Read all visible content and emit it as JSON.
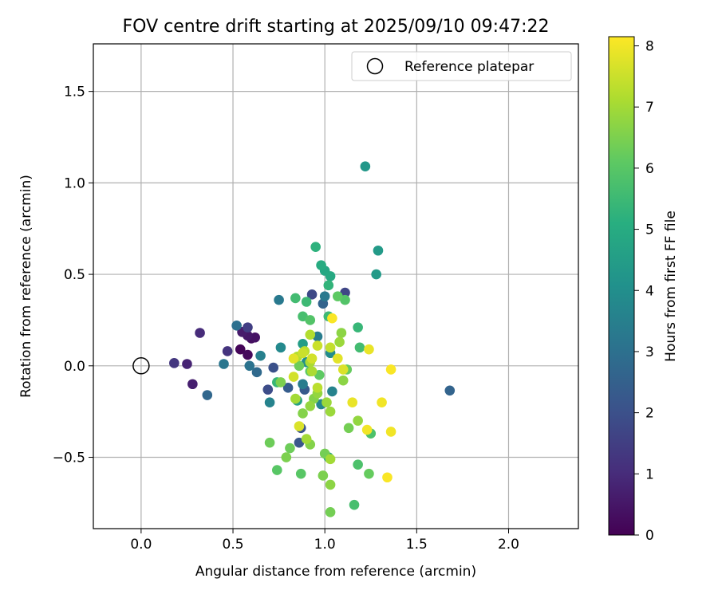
{
  "chart_data": {
    "type": "scatter",
    "title": "FOV centre drift starting at 2025/09/10 09:47:22",
    "xlabel": "Angular distance from reference (arcmin)",
    "ylabel": "Rotation from reference (arcmin)",
    "xlim": [
      -0.26,
      2.38
    ],
    "ylim": [
      -0.89,
      1.76
    ],
    "xticks": [
      0.0,
      0.5,
      1.0,
      1.5,
      2.0
    ],
    "xtick_labels": [
      "0.0",
      "0.5",
      "1.0",
      "1.5",
      "2.0"
    ],
    "yticks": [
      -0.5,
      0.0,
      0.5,
      1.0,
      1.5
    ],
    "ytick_labels": [
      "−0.5",
      "0.0",
      "0.5",
      "1.0",
      "1.5"
    ],
    "grid": true,
    "legend": {
      "position": "top-right",
      "label": "Reference platepar"
    },
    "reference_point": {
      "x": 0.0,
      "y": 0.0
    },
    "colorbar": {
      "label": "Hours from first FF file",
      "min": 0,
      "max": 8.15,
      "ticks": [
        0,
        1,
        2,
        3,
        4,
        5,
        6,
        7,
        8
      ],
      "tick_labels": [
        "0",
        "1",
        "2",
        "3",
        "4",
        "5",
        "6",
        "7",
        "8"
      ],
      "colormap": "viridis"
    },
    "points": [
      {
        "x": 0.54,
        "y": 0.09,
        "c": 0.1
      },
      {
        "x": 0.58,
        "y": 0.06,
        "c": 0.2
      },
      {
        "x": 0.6,
        "y": 0.15,
        "c": 0.3
      },
      {
        "x": 0.62,
        "y": 0.155,
        "c": 0.4
      },
      {
        "x": 0.58,
        "y": 0.165,
        "c": 0.5
      },
      {
        "x": 0.55,
        "y": 0.185,
        "c": 0.6
      },
      {
        "x": 0.28,
        "y": -0.1,
        "c": 0.7
      },
      {
        "x": 0.25,
        "y": 0.01,
        "c": 0.8
      },
      {
        "x": 0.32,
        "y": 0.18,
        "c": 1.0
      },
      {
        "x": 0.47,
        "y": 0.08,
        "c": 1.2
      },
      {
        "x": 0.18,
        "y": 0.015,
        "c": 1.3
      },
      {
        "x": 0.58,
        "y": 0.21,
        "c": 1.5
      },
      {
        "x": 1.11,
        "y": 0.4,
        "c": 1.7
      },
      {
        "x": 0.93,
        "y": 0.39,
        "c": 1.8
      },
      {
        "x": 0.69,
        "y": -0.13,
        "c": 1.9
      },
      {
        "x": 0.72,
        "y": -0.01,
        "c": 2.0
      },
      {
        "x": 0.87,
        "y": -0.34,
        "c": 2.1
      },
      {
        "x": 0.86,
        "y": -0.42,
        "c": 2.2
      },
      {
        "x": 0.89,
        "y": -0.13,
        "c": 2.3
      },
      {
        "x": 0.8,
        "y": -0.12,
        "c": 2.4
      },
      {
        "x": 0.99,
        "y": 0.34,
        "c": 2.6
      },
      {
        "x": 1.68,
        "y": -0.135,
        "c": 2.6
      },
      {
        "x": 0.36,
        "y": -0.16,
        "c": 2.7
      },
      {
        "x": 0.63,
        "y": -0.035,
        "c": 2.8
      },
      {
        "x": 0.52,
        "y": 0.22,
        "c": 3.0
      },
      {
        "x": 0.59,
        "y": 0.0,
        "c": 3.1
      },
      {
        "x": 0.45,
        "y": 0.01,
        "c": 3.2
      },
      {
        "x": 0.75,
        "y": 0.36,
        "c": 3.3
      },
      {
        "x": 1.0,
        "y": 0.38,
        "c": 3.3
      },
      {
        "x": 0.88,
        "y": -0.1,
        "c": 3.4
      },
      {
        "x": 0.96,
        "y": 0.16,
        "c": 3.4
      },
      {
        "x": 0.65,
        "y": 0.055,
        "c": 3.5
      },
      {
        "x": 1.04,
        "y": -0.14,
        "c": 3.6
      },
      {
        "x": 0.7,
        "y": -0.2,
        "c": 3.6
      },
      {
        "x": 0.98,
        "y": -0.21,
        "c": 3.7
      },
      {
        "x": 0.76,
        "y": 0.1,
        "c": 3.8
      },
      {
        "x": 1.03,
        "y": 0.07,
        "c": 3.9
      },
      {
        "x": 0.9,
        "y": 0.02,
        "c": 4.0
      },
      {
        "x": 1.22,
        "y": 1.09,
        "c": 4.3
      },
      {
        "x": 1.29,
        "y": 0.63,
        "c": 4.4
      },
      {
        "x": 1.28,
        "y": 0.5,
        "c": 4.4
      },
      {
        "x": 0.88,
        "y": 0.12,
        "c": 4.5
      },
      {
        "x": 0.85,
        "y": -0.19,
        "c": 4.6
      },
      {
        "x": 1.02,
        "y": -0.5,
        "c": 4.7
      },
      {
        "x": 1.0,
        "y": 0.52,
        "c": 4.8
      },
      {
        "x": 1.03,
        "y": 0.49,
        "c": 4.9
      },
      {
        "x": 0.98,
        "y": 0.55,
        "c": 5.0
      },
      {
        "x": 0.95,
        "y": 0.65,
        "c": 5.2
      },
      {
        "x": 1.02,
        "y": 0.44,
        "c": 5.3
      },
      {
        "x": 0.74,
        "y": -0.09,
        "c": 5.4
      },
      {
        "x": 1.18,
        "y": 0.21,
        "c": 5.4
      },
      {
        "x": 1.02,
        "y": 0.27,
        "c": 5.5
      },
      {
        "x": 0.9,
        "y": 0.35,
        "c": 5.5
      },
      {
        "x": 0.84,
        "y": 0.37,
        "c": 5.6
      },
      {
        "x": 1.19,
        "y": 0.1,
        "c": 5.6
      },
      {
        "x": 1.16,
        "y": -0.76,
        "c": 5.7
      },
      {
        "x": 0.88,
        "y": 0.27,
        "c": 5.7
      },
      {
        "x": 1.18,
        "y": -0.54,
        "c": 5.8
      },
      {
        "x": 1.25,
        "y": -0.37,
        "c": 5.8
      },
      {
        "x": 1.11,
        "y": 0.36,
        "c": 5.9
      },
      {
        "x": 0.92,
        "y": 0.25,
        "c": 5.9
      },
      {
        "x": 0.74,
        "y": -0.57,
        "c": 6.0
      },
      {
        "x": 0.87,
        "y": -0.59,
        "c": 6.0
      },
      {
        "x": 0.92,
        "y": -0.03,
        "c": 6.1
      },
      {
        "x": 0.97,
        "y": -0.05,
        "c": 6.1
      },
      {
        "x": 1.07,
        "y": 0.38,
        "c": 6.1
      },
      {
        "x": 1.12,
        "y": -0.02,
        "c": 6.2
      },
      {
        "x": 1.24,
        "y": -0.59,
        "c": 6.2
      },
      {
        "x": 0.7,
        "y": -0.42,
        "c": 6.3
      },
      {
        "x": 0.81,
        "y": -0.45,
        "c": 6.3
      },
      {
        "x": 0.86,
        "y": 0.0,
        "c": 6.3
      },
      {
        "x": 1.0,
        "y": -0.48,
        "c": 6.4
      },
      {
        "x": 1.03,
        "y": -0.8,
        "c": 6.4
      },
      {
        "x": 1.13,
        "y": -0.34,
        "c": 6.4
      },
      {
        "x": 0.99,
        "y": -0.6,
        "c": 6.5
      },
      {
        "x": 0.76,
        "y": -0.09,
        "c": 6.5
      },
      {
        "x": 0.79,
        "y": -0.5,
        "c": 6.5
      },
      {
        "x": 0.92,
        "y": -0.43,
        "c": 6.6
      },
      {
        "x": 0.88,
        "y": -0.26,
        "c": 6.6
      },
      {
        "x": 0.94,
        "y": -0.18,
        "c": 6.6
      },
      {
        "x": 1.09,
        "y": 0.18,
        "c": 6.7
      },
      {
        "x": 1.03,
        "y": -0.65,
        "c": 6.7
      },
      {
        "x": 1.1,
        "y": -0.08,
        "c": 6.7
      },
      {
        "x": 1.18,
        "y": -0.3,
        "c": 6.8
      },
      {
        "x": 0.92,
        "y": -0.22,
        "c": 6.8
      },
      {
        "x": 0.96,
        "y": -0.15,
        "c": 6.8
      },
      {
        "x": 1.01,
        "y": -0.2,
        "c": 6.9
      },
      {
        "x": 1.03,
        "y": -0.25,
        "c": 6.9
      },
      {
        "x": 1.08,
        "y": 0.13,
        "c": 6.9
      },
      {
        "x": 0.84,
        "y": -0.18,
        "c": 7.0
      },
      {
        "x": 0.9,
        "y": -0.4,
        "c": 7.0
      },
      {
        "x": 1.03,
        "y": -0.51,
        "c": 7.0
      },
      {
        "x": 0.93,
        "y": -0.03,
        "c": 7.1
      },
      {
        "x": 0.92,
        "y": 0.02,
        "c": 7.1
      },
      {
        "x": 0.92,
        "y": 0.17,
        "c": 7.2
      },
      {
        "x": 0.85,
        "y": 0.05,
        "c": 7.2
      },
      {
        "x": 0.89,
        "y": 0.08,
        "c": 7.3
      },
      {
        "x": 0.96,
        "y": -0.12,
        "c": 7.3
      },
      {
        "x": 1.03,
        "y": 0.1,
        "c": 7.4
      },
      {
        "x": 0.96,
        "y": 0.11,
        "c": 7.5
      },
      {
        "x": 0.88,
        "y": 0.07,
        "c": 7.5
      },
      {
        "x": 0.83,
        "y": -0.06,
        "c": 7.6
      },
      {
        "x": 0.93,
        "y": 0.04,
        "c": 7.6
      },
      {
        "x": 1.1,
        "y": -0.02,
        "c": 7.7
      },
      {
        "x": 0.86,
        "y": -0.33,
        "c": 7.7
      },
      {
        "x": 1.07,
        "y": 0.04,
        "c": 7.8
      },
      {
        "x": 0.83,
        "y": 0.04,
        "c": 7.8
      },
      {
        "x": 1.24,
        "y": 0.09,
        "c": 7.9
      },
      {
        "x": 1.15,
        "y": -0.2,
        "c": 7.9
      },
      {
        "x": 1.31,
        "y": -0.2,
        "c": 8.0
      },
      {
        "x": 1.23,
        "y": -0.35,
        "c": 8.0
      },
      {
        "x": 1.36,
        "y": -0.36,
        "c": 8.0
      },
      {
        "x": 1.04,
        "y": 0.26,
        "c": 8.1
      },
      {
        "x": 1.36,
        "y": -0.02,
        "c": 8.1
      },
      {
        "x": 1.34,
        "y": -0.61,
        "c": 8.1
      }
    ]
  }
}
